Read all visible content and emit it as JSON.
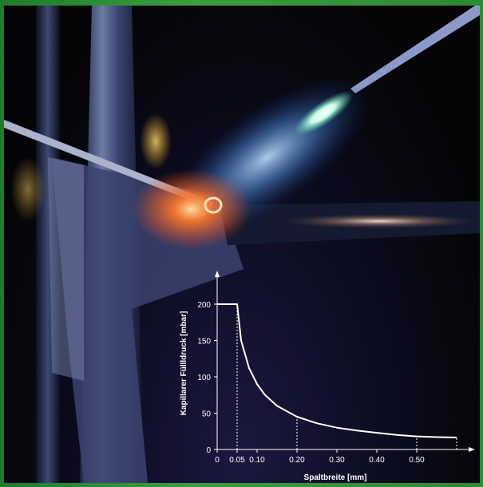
{
  "chart_data": {
    "type": "line",
    "xlabel": "Spaltbreite [mm]",
    "ylabel": "Kapillarer Füllldruck [mbar]",
    "x_ticks": [
      "0",
      "0.05",
      "0.10",
      "0.20",
      "0.30",
      "0.40",
      "0.50"
    ],
    "y_ticks": [
      "0",
      "50",
      "100",
      "150",
      "200"
    ],
    "xlim": [
      0,
      0.62
    ],
    "ylim": [
      0,
      225
    ],
    "grid": false,
    "series": [
      {
        "x": [
          0,
          0.05,
          0.06,
          0.08,
          0.1,
          0.12,
          0.15,
          0.2,
          0.25,
          0.3,
          0.35,
          0.4,
          0.45,
          0.5,
          0.55,
          0.6
        ],
        "y": [
          200,
          200,
          150,
          112,
          90,
          75,
          60,
          45,
          36,
          30,
          26,
          23,
          20,
          18,
          17,
          16.5
        ]
      }
    ],
    "reference_lines_x": [
      0.05,
      0.2,
      0.5,
      0.6
    ],
    "colors": {
      "line": "#ffffff",
      "axis": "#ffffff"
    }
  }
}
